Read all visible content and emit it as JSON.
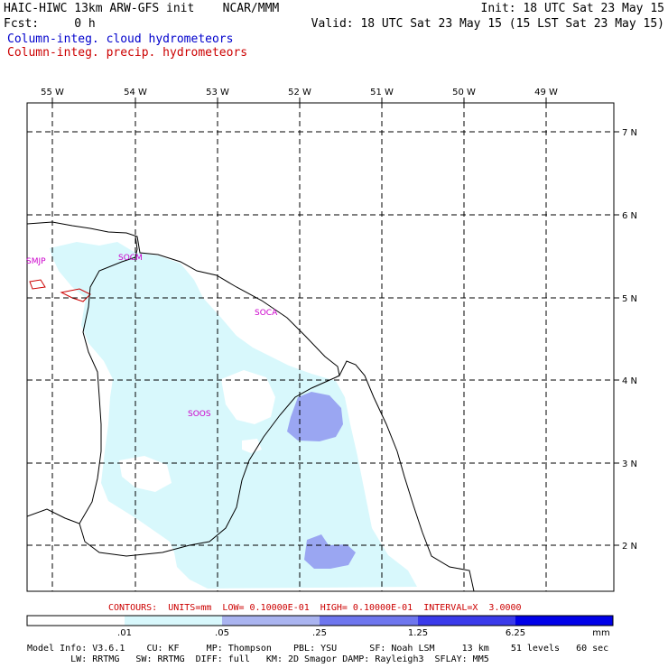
{
  "header": {
    "title_left": "HAIC-HIWC 13km ARW-GFS init    NCAR/MMM",
    "fcst": "Fcst:     0 h",
    "init": "Init: 18 UTC Sat 23 May 15",
    "valid": "Valid: 18 UTC Sat 23 May 15 (15 LST Sat 23 May 15)",
    "field1": "Column-integ. cloud hydrometeors",
    "field2": "Column-integ. precip. hydrometeors"
  },
  "map": {
    "lon_labels": [
      "55 W",
      "54 W",
      "53 W",
      "52 W",
      "51 W",
      "50 W",
      "49 W"
    ],
    "lat_labels": [
      "7 N",
      "6 N",
      "5 N",
      "4 N",
      "3 N",
      "2 N"
    ],
    "stations": [
      "SMJP",
      "SOCM",
      "SOCA",
      "SOOS"
    ],
    "colors": {
      "cloud_light": "#d8f8fc",
      "cloud_mid": "#9aa6f2",
      "precip_contour": "#cc0000",
      "coast": "#000000",
      "station": "#cc00cc"
    }
  },
  "colorbar": {
    "contours": "CONTOURS:  UNITS=mm  LOW= 0.10000E-01  HIGH= 0.10000E-01  INTERVAL=X  3.0000",
    "ticks": [
      ".01",
      ".05",
      ".25",
      "1.25",
      "6.25"
    ],
    "unit": "mm",
    "colors": [
      "#ffffff",
      "#d8f8fc",
      "#aab4f0",
      "#6e76ee",
      "#3a3aea",
      "#0000e8"
    ]
  },
  "footer": {
    "line1": "Model Info: V3.6.1    CU: KF     MP: Thompson    PBL: YSU      SF: Noah LSM     13 km    51 levels   60 sec",
    "line2": "        LW: RRTMG   SW: RRTMG  DIFF: full   KM: 2D Smagor DAMP: Rayleigh3  SFLAY: MM5"
  }
}
